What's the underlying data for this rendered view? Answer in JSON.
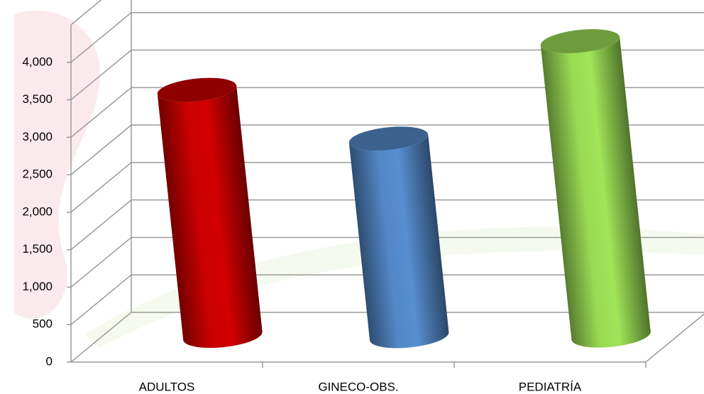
{
  "chart_data": {
    "type": "bar",
    "categories": [
      "ADULTOS",
      "GINECO-OBS.",
      "PEDIATRÍA"
    ],
    "values": [
      3300,
      2650,
      3950
    ],
    "colors": [
      "#c00000",
      "#4f81bd",
      "#92d050"
    ],
    "ylim": [
      0,
      4500
    ],
    "yticks": [
      0,
      500,
      {
        "value": 1000,
        "label": "1,000"
      },
      {
        "value": 1500,
        "label": "1,500"
      },
      {
        "value": 2000,
        "label": "2,000"
      },
      {
        "value": 2500,
        "label": "2,500"
      },
      {
        "value": 3000,
        "label": "3,000"
      },
      {
        "value": 3500,
        "label": "3,500"
      },
      {
        "value": 4000,
        "label": "4,000"
      }
    ],
    "grid": true
  }
}
